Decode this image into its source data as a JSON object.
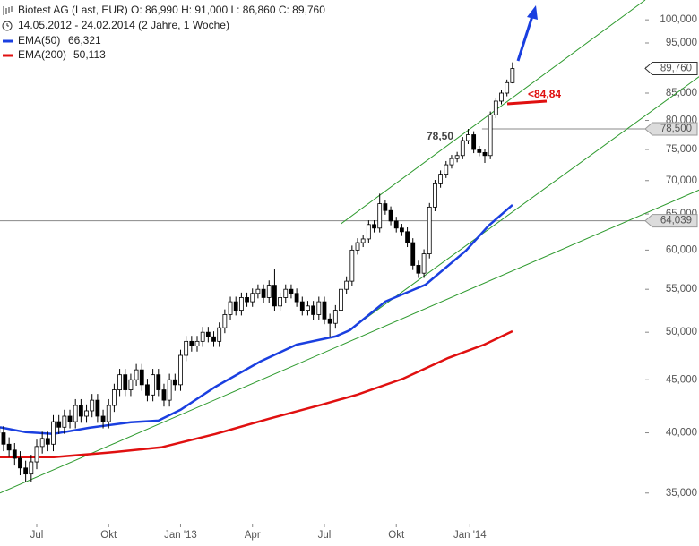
{
  "chart_data": {
    "type": "candlestick",
    "title": "Biotest AG (Last, EUR)  O: 86,990  H: 91,000  L: 86,860  C: 89,760",
    "subtitle": "14.05.2012 - 24.02.2014 (2 Jahre, 1 Woche)",
    "log_scale": true,
    "candle_color": "#000000",
    "ylim": [
      32700,
      104500
    ],
    "yticks": [
      {
        "value": 35000,
        "label": "35,000"
      },
      {
        "value": 40000,
        "label": "40,000"
      },
      {
        "value": 45000,
        "label": "45,000"
      },
      {
        "value": 50000,
        "label": "50,000"
      },
      {
        "value": 55000,
        "label": "55,000"
      },
      {
        "value": 60000,
        "label": "60,000"
      },
      {
        "value": 65000,
        "label": "65,000"
      },
      {
        "value": 70000,
        "label": "70,000"
      },
      {
        "value": 75000,
        "label": "75,000"
      },
      {
        "value": 80000,
        "label": "80,000"
      },
      {
        "value": 85000,
        "label": "85,000"
      },
      {
        "value": 90000,
        "label": "90,000"
      },
      {
        "value": 95000,
        "label": "95,000"
      },
      {
        "value": 100000,
        "label": "100,000"
      }
    ],
    "xlim": [
      0.36,
      117
    ],
    "xticks": [
      {
        "value": 7,
        "label": "Jul"
      },
      {
        "value": 20,
        "label": "Okt"
      },
      {
        "value": 33,
        "label": "Jan '13"
      },
      {
        "value": 46,
        "label": "Apr"
      },
      {
        "value": 59,
        "label": "Jul"
      },
      {
        "value": 72,
        "label": "Okt"
      },
      {
        "value": 85.3,
        "label": "Jan '14"
      }
    ],
    "candles": {
      "open": [
        40500,
        40000,
        39000,
        38500,
        37800,
        37000,
        36500,
        37500,
        38800,
        39500,
        39000,
        41000,
        40500,
        41500,
        41000,
        42500,
        41500,
        42000,
        43000,
        41500,
        41000,
        42500,
        44000,
        45500,
        44000,
        45000,
        46000,
        44500,
        43500,
        45500,
        44000,
        43000,
        45000,
        44500,
        47500,
        49000,
        48500,
        49000,
        50000,
        49500,
        49000,
        50500,
        52000,
        53500,
        52500,
        54000,
        53500,
        54500,
        55000,
        54000,
        55500,
        53000,
        54000,
        55000,
        54500,
        53500,
        52500,
        53000,
        52000,
        53500,
        51500,
        51000,
        52500,
        55000,
        56000,
        60000,
        61000,
        61500,
        63500,
        63000,
        66500,
        65500,
        64000,
        63000,
        62500,
        61000,
        58000,
        57000,
        59500,
        66000,
        69500,
        71000,
        72500,
        73500,
        74000,
        76500,
        77500,
        75000,
        74500,
        74000,
        81000,
        83500,
        85000,
        86990
      ],
      "high": [
        41100,
        40600,
        39600,
        39100,
        38400,
        37600,
        38100,
        39400,
        40100,
        40100,
        41600,
        41600,
        42100,
        42100,
        43100,
        43100,
        42600,
        43600,
        43600,
        42100,
        43100,
        44600,
        46100,
        46100,
        45600,
        46600,
        46600,
        45100,
        46100,
        46100,
        44600,
        45600,
        45600,
        48100,
        49600,
        49600,
        49600,
        50600,
        50600,
        50100,
        51100,
        52600,
        54100,
        54100,
        54600,
        54600,
        55100,
        55600,
        55600,
        56100,
        57500,
        54600,
        55600,
        55600,
        55100,
        54100,
        53600,
        53600,
        54100,
        54100,
        52100,
        53100,
        55600,
        56600,
        60600,
        61600,
        62100,
        64100,
        64100,
        68000,
        67100,
        66100,
        64600,
        63600,
        63100,
        61600,
        58600,
        60100,
        66600,
        70100,
        71600,
        73100,
        74100,
        74600,
        77100,
        78500,
        78100,
        75600,
        75100,
        81600,
        84100,
        85600,
        87600,
        91000
      ],
      "low": [
        39400,
        38400,
        37900,
        37200,
        36400,
        35900,
        35900,
        36900,
        38200,
        38400,
        38400,
        39900,
        39900,
        40400,
        40400,
        40900,
        40900,
        41400,
        40900,
        40400,
        40400,
        41900,
        43400,
        43400,
        43400,
        44400,
        43900,
        42900,
        42900,
        43400,
        42400,
        42400,
        43900,
        43900,
        46900,
        47900,
        47900,
        48400,
        48900,
        48400,
        48400,
        49900,
        51400,
        51900,
        51900,
        52900,
        52900,
        53900,
        53400,
        53400,
        52400,
        52400,
        53400,
        53900,
        52900,
        51900,
        51900,
        51400,
        51400,
        50900,
        49500,
        50400,
        51900,
        54400,
        55400,
        59400,
        60400,
        60900,
        62400,
        62400,
        64900,
        63400,
        62400,
        61900,
        60400,
        57400,
        56400,
        56400,
        58900,
        65400,
        68900,
        70400,
        71900,
        72900,
        73400,
        75900,
        74400,
        73900,
        72800,
        73400,
        80400,
        82900,
        84400,
        86860
      ],
      "close": [
        40000,
        39000,
        38500,
        37800,
        37000,
        36500,
        37500,
        38800,
        39500,
        39000,
        41000,
        40500,
        41500,
        41000,
        42500,
        41500,
        42000,
        43000,
        41500,
        41000,
        42500,
        44000,
        45500,
        44000,
        45000,
        46000,
        44500,
        43500,
        45500,
        44000,
        43000,
        45000,
        44500,
        47500,
        49000,
        48500,
        49000,
        50000,
        49500,
        49000,
        50500,
        52000,
        53500,
        52500,
        54000,
        53500,
        54500,
        55000,
        54000,
        55500,
        53000,
        54000,
        55000,
        54500,
        53500,
        52500,
        53000,
        52000,
        53500,
        51500,
        51000,
        52500,
        55000,
        56000,
        60000,
        61000,
        61500,
        63500,
        63000,
        66500,
        65500,
        64000,
        63000,
        62500,
        61000,
        58000,
        57000,
        59500,
        66000,
        69500,
        71000,
        72500,
        73500,
        74000,
        76500,
        77500,
        75000,
        74500,
        74000,
        81000,
        83500,
        85000,
        87000,
        89760
      ]
    },
    "series": [
      {
        "name": "EMA(50)",
        "color": "#1a3fe0",
        "last_label": "66,321",
        "x": [
          0.36,
          5,
          10,
          16.5,
          24,
          29,
          33,
          39.3,
          47.4,
          54,
          61,
          63.6,
          70,
          77.3,
          84.6,
          88.7,
          93
        ],
        "values": [
          40500,
          40060,
          39900,
          40450,
          40940,
          41100,
          42100,
          44300,
          46850,
          48650,
          49530,
          50230,
          53520,
          55570,
          59920,
          63350,
          66321
        ]
      },
      {
        "name": "EMA(200)",
        "color": "#e01010",
        "last_label": "50,113",
        "x": [
          0.36,
          10.1,
          19.8,
          29.5,
          39.3,
          49,
          58.7,
          65,
          73.3,
          81.4,
          87.9,
          93
        ],
        "values": [
          37900,
          37900,
          38270,
          38730,
          39900,
          41270,
          42600,
          43540,
          45120,
          47230,
          48650,
          50113
        ]
      }
    ],
    "trendlines": [
      {
        "color": "#2e9a2e",
        "x": [
          62,
          117
        ],
        "y": [
          63600,
          104500
        ]
      },
      {
        "color": "#2e9a2e",
        "x": [
          63,
          126.8
        ],
        "y": [
          50000,
          88200
        ]
      },
      {
        "color": "#2e9a2e",
        "x": [
          0.36,
          126.8
        ],
        "y": [
          35000,
          68580
        ]
      }
    ],
    "levels": [
      {
        "value": 78500,
        "label": "78,500",
        "from": 87.5
      },
      {
        "value": 64039,
        "label": "64,039",
        "from": 0.36
      }
    ],
    "last_price": {
      "value": 89760,
      "label": "89,760"
    },
    "annotations": [
      "78,50",
      "<84,84"
    ]
  }
}
